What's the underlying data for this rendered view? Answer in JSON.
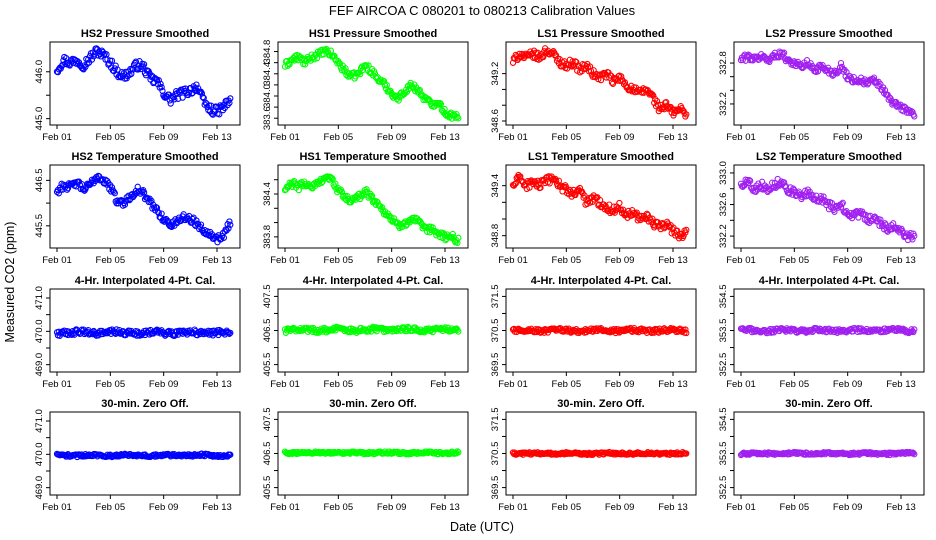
{
  "figure": {
    "title": "FEF   AIRCOA C   080201 to 080213   Calibration Values",
    "xlabel": "Date (UTC)",
    "ylabel": "Measured CO2 (ppm)"
  },
  "colors": {
    "HS2": "#0000ff",
    "HS1": "#00ff00",
    "LS1": "#ff0000",
    "LS2": "#a020f0"
  },
  "chart_data": [
    {
      "type": "scatter",
      "title": "HS2 Pressure Smoothed",
      "series": "HS2",
      "color": "#0000ff",
      "xlim": [
        1,
        14.2
      ],
      "xticks": [
        1,
        5,
        9,
        13
      ],
      "xticklabels": [
        "Feb 01",
        "Feb 05",
        "Feb 09",
        "Feb 13"
      ],
      "ylim": [
        444.95,
        446.55
      ],
      "yticks": [
        445.0,
        445.5,
        446.0
      ],
      "yticklabels": [
        "445.0",
        "",
        "446.0"
      ],
      "x": [
        1.0,
        1.5,
        2.0,
        2.5,
        3.0,
        3.5,
        4.0,
        4.5,
        5.0,
        5.5,
        6.0,
        6.5,
        7.0,
        7.5,
        8.0,
        8.5,
        9.0,
        9.5,
        10.0,
        10.5,
        11.0,
        11.5,
        12.0,
        12.5,
        13.0,
        13.5,
        14.0
      ],
      "y": [
        446.05,
        446.25,
        446.2,
        446.25,
        446.15,
        446.3,
        446.45,
        446.35,
        446.2,
        446.0,
        445.9,
        446.0,
        446.15,
        446.1,
        445.85,
        445.8,
        445.55,
        445.4,
        445.5,
        445.55,
        445.6,
        445.7,
        445.35,
        445.2,
        445.15,
        445.25,
        445.4
      ],
      "spread": 0.1
    },
    {
      "type": "scatter",
      "title": "HS1 Pressure Smoothed",
      "series": "HS1",
      "color": "#00ff00",
      "xlim": [
        1,
        14.2
      ],
      "xticks": [
        1,
        5,
        9,
        13
      ],
      "xticklabels": [
        "Feb 01",
        "Feb 05",
        "Feb 09",
        "Feb 13"
      ],
      "ylim": [
        383.55,
        384.9
      ],
      "yticks": [
        383.6,
        383.8,
        384.0,
        384.2,
        384.4,
        384.6,
        384.8
      ],
      "yticklabels": [
        "383.6",
        "",
        "384.0",
        "",
        "384.4",
        "",
        "384.8"
      ],
      "x": [
        1.0,
        1.5,
        2.0,
        2.5,
        3.0,
        3.5,
        4.0,
        4.5,
        5.0,
        5.5,
        6.0,
        6.5,
        7.0,
        7.5,
        8.0,
        8.5,
        9.0,
        9.5,
        10.0,
        10.5,
        11.0,
        11.5,
        12.0,
        12.5,
        13.0,
        13.5,
        14.0
      ],
      "y": [
        384.55,
        384.65,
        384.7,
        384.6,
        384.7,
        384.75,
        384.8,
        384.75,
        384.6,
        384.45,
        384.35,
        384.4,
        384.55,
        384.45,
        384.3,
        384.2,
        384.05,
        383.95,
        384.1,
        384.2,
        384.1,
        383.95,
        383.85,
        383.9,
        383.7,
        383.65,
        383.6
      ],
      "spread": 0.06
    },
    {
      "type": "scatter",
      "title": "LS1 Pressure Smoothed",
      "series": "LS1",
      "color": "#ff0000",
      "xlim": [
        1,
        14.2
      ],
      "xticks": [
        1,
        5,
        9,
        13
      ],
      "xticklabels": [
        "Feb 01",
        "Feb 05",
        "Feb 09",
        "Feb 13"
      ],
      "ylim": [
        348.6,
        349.55
      ],
      "yticks": [
        348.6,
        348.8,
        349.0,
        349.2
      ],
      "yticklabels": [
        "348.6",
        "",
        "",
        "349.2"
      ],
      "x": [
        1.0,
        1.5,
        2.0,
        2.5,
        3.0,
        3.5,
        4.0,
        4.5,
        5.0,
        5.5,
        6.0,
        6.5,
        7.0,
        7.5,
        8.0,
        8.5,
        9.0,
        9.5,
        10.0,
        10.5,
        11.0,
        11.5,
        12.0,
        12.5,
        13.0,
        13.5,
        14.0
      ],
      "y": [
        349.35,
        349.45,
        349.4,
        349.45,
        349.4,
        349.5,
        349.45,
        349.35,
        349.3,
        349.35,
        349.25,
        349.3,
        349.2,
        349.15,
        349.2,
        349.1,
        349.15,
        349.05,
        349.0,
        348.95,
        349.0,
        348.9,
        348.75,
        348.8,
        348.7,
        348.75,
        348.7
      ],
      "spread": 0.05
    },
    {
      "type": "scatter",
      "title": "LS2 Pressure Smoothed",
      "series": "LS2",
      "color": "#a020f0",
      "xlim": [
        1,
        14.2
      ],
      "xticks": [
        1,
        5,
        9,
        13
      ],
      "xticklabels": [
        "Feb 01",
        "Feb 05",
        "Feb 09",
        "Feb 13"
      ],
      "ylim": [
        331.95,
        333.05
      ],
      "yticks": [
        332.2,
        332.4,
        332.6,
        332.8
      ],
      "yticklabels": [
        "332.2",
        "",
        "",
        "332.8"
      ],
      "x": [
        1.0,
        1.5,
        2.0,
        2.5,
        3.0,
        3.5,
        4.0,
        4.5,
        5.0,
        5.5,
        6.0,
        6.5,
        7.0,
        7.5,
        8.0,
        8.5,
        9.0,
        9.5,
        10.0,
        10.5,
        11.0,
        11.5,
        12.0,
        12.5,
        13.0,
        13.5,
        14.0
      ],
      "y": [
        332.85,
        332.9,
        332.85,
        332.9,
        332.85,
        332.9,
        332.95,
        332.85,
        332.8,
        332.75,
        332.8,
        332.7,
        332.75,
        332.7,
        332.65,
        332.75,
        332.6,
        332.55,
        332.55,
        332.5,
        332.55,
        332.45,
        332.3,
        332.2,
        332.15,
        332.1,
        332.05
      ],
      "spread": 0.05
    },
    {
      "type": "scatter",
      "title": "HS2 Temperature Smoothed",
      "series": "HS2",
      "color": "#0000ff",
      "xlim": [
        1,
        14.2
      ],
      "xticks": [
        1,
        5,
        9,
        13
      ],
      "xticklabels": [
        "Feb 01",
        "Feb 05",
        "Feb 09",
        "Feb 13"
      ],
      "ylim": [
        445.1,
        446.75
      ],
      "yticks": [
        445.5,
        446.0,
        446.5
      ],
      "yticklabels": [
        "445.5",
        "",
        "446.5"
      ],
      "x": [
        1.0,
        1.5,
        2.0,
        2.5,
        3.0,
        3.5,
        4.0,
        4.5,
        5.0,
        5.5,
        6.0,
        6.5,
        7.0,
        7.5,
        8.0,
        8.5,
        9.0,
        9.5,
        10.0,
        10.5,
        11.0,
        11.5,
        12.0,
        12.5,
        13.0,
        13.5,
        14.0
      ],
      "y": [
        446.25,
        446.4,
        446.35,
        446.45,
        446.3,
        446.4,
        446.6,
        446.5,
        446.35,
        446.05,
        446.0,
        446.15,
        446.3,
        446.2,
        446.0,
        445.85,
        445.65,
        445.5,
        445.6,
        445.7,
        445.65,
        445.55,
        445.4,
        445.35,
        445.2,
        445.3,
        445.6
      ],
      "spread": 0.08
    },
    {
      "type": "scatter",
      "title": "HS1 Temperature Smoothed",
      "series": "HS1",
      "color": "#00ff00",
      "xlim": [
        1,
        14.2
      ],
      "xticks": [
        1,
        5,
        9,
        13
      ],
      "xticklabels": [
        "Feb 01",
        "Feb 05",
        "Feb 09",
        "Feb 13"
      ],
      "ylim": [
        383.7,
        384.75
      ],
      "yticks": [
        383.8,
        384.0,
        384.2,
        384.4,
        384.6
      ],
      "yticklabels": [
        "383.8",
        "",
        "",
        "384.4",
        ""
      ],
      "x": [
        1.0,
        1.5,
        2.0,
        2.5,
        3.0,
        3.5,
        4.0,
        4.5,
        5.0,
        5.5,
        6.0,
        6.5,
        7.0,
        7.5,
        8.0,
        8.5,
        9.0,
        9.5,
        10.0,
        10.5,
        11.0,
        11.5,
        12.0,
        12.5,
        13.0,
        13.5,
        14.0
      ],
      "y": [
        384.45,
        384.55,
        384.5,
        384.55,
        384.5,
        384.55,
        384.65,
        384.6,
        384.45,
        384.35,
        384.3,
        384.35,
        384.45,
        384.35,
        384.25,
        384.15,
        384.05,
        383.95,
        384.0,
        384.05,
        384.0,
        383.9,
        383.9,
        383.85,
        383.8,
        383.8,
        383.75
      ],
      "spread": 0.05
    },
    {
      "type": "scatter",
      "title": "LS1 Temperature Smoothed",
      "series": "LS1",
      "color": "#ff0000",
      "xlim": [
        1,
        14.2
      ],
      "xticks": [
        1,
        5,
        9,
        13
      ],
      "xticklabels": [
        "Feb 01",
        "Feb 05",
        "Feb 09",
        "Feb 13"
      ],
      "ylim": [
        348.7,
        349.6
      ],
      "yticks": [
        348.8,
        349.0,
        349.2,
        349.4
      ],
      "yticklabels": [
        "348.8",
        "",
        "",
        "349.4"
      ],
      "x": [
        1.0,
        1.5,
        2.0,
        2.5,
        3.0,
        3.5,
        4.0,
        4.5,
        5.0,
        5.5,
        6.0,
        6.5,
        7.0,
        7.5,
        8.0,
        8.5,
        9.0,
        9.5,
        10.0,
        10.5,
        11.0,
        11.5,
        12.0,
        12.5,
        13.0,
        13.5,
        14.0
      ],
      "y": [
        349.4,
        349.5,
        349.4,
        349.45,
        349.4,
        349.45,
        349.5,
        349.4,
        349.35,
        349.3,
        349.35,
        349.2,
        349.25,
        349.2,
        349.15,
        349.1,
        349.15,
        349.05,
        349.1,
        349.0,
        349.05,
        348.95,
        348.9,
        348.95,
        348.85,
        348.8,
        348.85
      ],
      "spread": 0.05
    },
    {
      "type": "scatter",
      "title": "LS2 Temperature Smoothed",
      "series": "LS2",
      "color": "#a020f0",
      "xlim": [
        1,
        14.2
      ],
      "xticks": [
        1,
        5,
        9,
        13
      ],
      "xticklabels": [
        "Feb 01",
        "Feb 05",
        "Feb 09",
        "Feb 13"
      ],
      "ylim": [
        332.1,
        333.05
      ],
      "yticks": [
        332.2,
        332.4,
        332.6,
        332.8,
        333.0
      ],
      "yticklabels": [
        "332.2",
        "",
        "332.6",
        "",
        "333.0"
      ],
      "x": [
        1.0,
        1.5,
        2.0,
        2.5,
        3.0,
        3.5,
        4.0,
        4.5,
        5.0,
        5.5,
        6.0,
        6.5,
        7.0,
        7.5,
        8.0,
        8.5,
        9.0,
        9.5,
        10.0,
        10.5,
        11.0,
        11.5,
        12.0,
        12.5,
        13.0,
        13.5,
        14.0
      ],
      "y": [
        332.85,
        332.9,
        332.8,
        332.85,
        332.8,
        332.85,
        332.9,
        332.8,
        332.75,
        332.7,
        332.75,
        332.65,
        332.7,
        332.6,
        332.55,
        332.6,
        332.5,
        332.45,
        332.5,
        332.4,
        332.45,
        332.35,
        332.3,
        332.35,
        332.25,
        332.2,
        332.2
      ],
      "spread": 0.05
    },
    {
      "type": "scatter",
      "title": "4-Hr. Interpolated 4-Pt. Cal.",
      "series": "HS2",
      "color": "#0000ff",
      "xlim": [
        1,
        14.2
      ],
      "xticks": [
        1,
        5,
        9,
        13
      ],
      "xticklabels": [
        "Feb 01",
        "Feb 05",
        "Feb 09",
        "Feb 13"
      ],
      "ylim": [
        468.9,
        471.15
      ],
      "yticks": [
        469.0,
        469.5,
        470.0,
        470.5,
        471.0
      ],
      "yticklabels": [
        "469.0",
        "",
        "470.0",
        "",
        "471.0"
      ],
      "level": 469.96,
      "spread": 0.08
    },
    {
      "type": "scatter",
      "title": "4-Hr. Interpolated 4-Pt. Cal.",
      "series": "HS1",
      "color": "#00ff00",
      "xlim": [
        1,
        14.2
      ],
      "xticks": [
        1,
        5,
        9,
        13
      ],
      "xticklabels": [
        "Feb 01",
        "Feb 05",
        "Feb 09",
        "Feb 13"
      ],
      "ylim": [
        405.4,
        407.6
      ],
      "yticks": [
        405.5,
        406.0,
        406.5,
        407.0,
        407.5
      ],
      "yticklabels": [
        "405.5",
        "",
        "406.5",
        "",
        "407.5"
      ],
      "level": 406.52,
      "spread": 0.07
    },
    {
      "type": "scatter",
      "title": "4-Hr. Interpolated 4-Pt. Cal.",
      "series": "LS1",
      "color": "#ff0000",
      "xlim": [
        1,
        14.2
      ],
      "xticks": [
        1,
        5,
        9,
        13
      ],
      "xticklabels": [
        "Feb 01",
        "Feb 05",
        "Feb 09",
        "Feb 13"
      ],
      "ylim": [
        369.4,
        371.6
      ],
      "yticks": [
        369.5,
        370.0,
        370.5,
        371.0,
        371.5
      ],
      "yticklabels": [
        "369.5",
        "",
        "370.5",
        "",
        "371.5"
      ],
      "level": 370.5,
      "spread": 0.06
    },
    {
      "type": "scatter",
      "title": "4-Hr. Interpolated 4-Pt. Cal.",
      "series": "LS2",
      "color": "#a020f0",
      "xlim": [
        1,
        14.2
      ],
      "xticks": [
        1,
        5,
        9,
        13
      ],
      "xticklabels": [
        "Feb 01",
        "Feb 05",
        "Feb 09",
        "Feb 13"
      ],
      "ylim": [
        352.4,
        354.6
      ],
      "yticks": [
        352.5,
        353.0,
        353.5,
        354.0,
        354.5
      ],
      "yticklabels": [
        "352.5",
        "",
        "353.5",
        "",
        "354.5"
      ],
      "level": 353.5,
      "spread": 0.06
    },
    {
      "type": "scatter",
      "title": "30-min. Zero Off.",
      "series": "HS2",
      "color": "#0000ff",
      "xlim": [
        1,
        14.2
      ],
      "xticks": [
        1,
        5,
        9,
        13
      ],
      "xticklabels": [
        "Feb 01",
        "Feb 05",
        "Feb 09",
        "Feb 13"
      ],
      "ylim": [
        468.9,
        471.15
      ],
      "yticks": [
        469.0,
        469.5,
        470.0,
        470.5,
        471.0
      ],
      "yticklabels": [
        "469.0",
        "",
        "470.0",
        "",
        "471.0"
      ],
      "level": 469.97,
      "spread": 0.04
    },
    {
      "type": "scatter",
      "title": "30-min. Zero Off.",
      "series": "HS1",
      "color": "#00ff00",
      "xlim": [
        1,
        14.2
      ],
      "xticks": [
        1,
        5,
        9,
        13
      ],
      "xticklabels": [
        "Feb 01",
        "Feb 05",
        "Feb 09",
        "Feb 13"
      ],
      "ylim": [
        405.4,
        407.6
      ],
      "yticks": [
        405.5,
        406.0,
        406.5,
        407.0,
        407.5
      ],
      "yticklabels": [
        "405.5",
        "",
        "406.5",
        "",
        "407.5"
      ],
      "level": 406.52,
      "spread": 0.035
    },
    {
      "type": "scatter",
      "title": "30-min. Zero Off.",
      "series": "LS1",
      "color": "#ff0000",
      "xlim": [
        1,
        14.2
      ],
      "xticks": [
        1,
        5,
        9,
        13
      ],
      "xticklabels": [
        "Feb 01",
        "Feb 05",
        "Feb 09",
        "Feb 13"
      ],
      "ylim": [
        369.4,
        371.6
      ],
      "yticks": [
        369.5,
        370.0,
        370.5,
        371.0,
        371.5
      ],
      "yticklabels": [
        "369.5",
        "",
        "370.5",
        "",
        "371.5"
      ],
      "level": 370.5,
      "spread": 0.035
    },
    {
      "type": "scatter",
      "title": "30-min. Zero Off.",
      "series": "LS2",
      "color": "#a020f0",
      "xlim": [
        1,
        14.2
      ],
      "xticks": [
        1,
        5,
        9,
        13
      ],
      "xticklabels": [
        "Feb 01",
        "Feb 05",
        "Feb 09",
        "Feb 13"
      ],
      "ylim": [
        352.4,
        354.6
      ],
      "yticks": [
        352.5,
        353.0,
        353.5,
        354.0,
        354.5
      ],
      "yticklabels": [
        "352.5",
        "",
        "353.5",
        "",
        "354.5"
      ],
      "level": 353.5,
      "spread": 0.035
    }
  ]
}
